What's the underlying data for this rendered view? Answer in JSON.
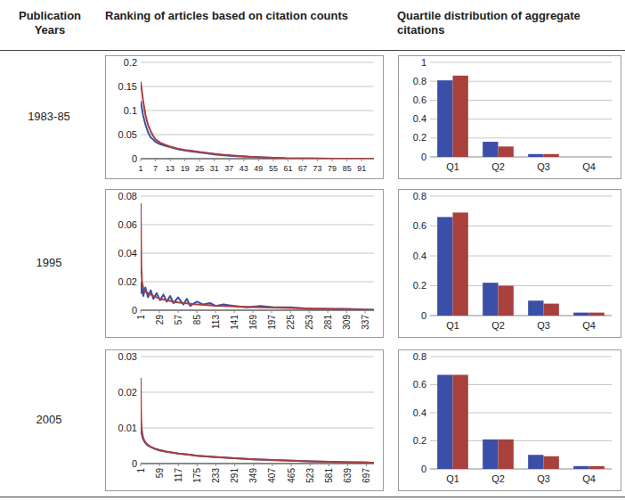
{
  "table": {
    "columns": [
      "Publication Years",
      "Ranking of articles based on citation counts",
      "Quartile distribution of aggregate citations"
    ],
    "row_labels": [
      "1983-85",
      "1995",
      "2005"
    ]
  },
  "chart_data": [
    {
      "type": "line",
      "grid": true,
      "x": [
        1,
        2,
        3,
        4,
        5,
        6,
        7,
        9,
        11,
        13,
        16,
        19,
        22,
        25,
        28,
        31,
        35,
        40,
        45,
        50,
        55,
        60,
        70,
        80,
        90,
        96
      ],
      "xlim": [
        1,
        96
      ],
      "xticks": [
        1,
        7,
        13,
        19,
        25,
        31,
        37,
        43,
        49,
        55,
        61,
        67,
        73,
        79,
        85,
        91
      ],
      "ylim": [
        0,
        0.2
      ],
      "yticks": [
        0,
        0.05,
        0.1,
        0.15,
        0.2
      ],
      "series": [
        {
          "color": "#3a4fa8",
          "values": [
            0.12,
            0.09,
            0.07,
            0.055,
            0.045,
            0.04,
            0.035,
            0.03,
            0.027,
            0.024,
            0.02,
            0.017,
            0.015,
            0.013,
            0.011,
            0.009,
            0.007,
            0.005,
            0.004,
            0.003,
            0.002,
            0.001,
            0.0005,
            0.0002,
            0.0001,
            0
          ]
        },
        {
          "color": "#a8403c",
          "values": [
            0.16,
            0.12,
            0.09,
            0.07,
            0.058,
            0.048,
            0.04,
            0.033,
            0.029,
            0.025,
            0.021,
            0.018,
            0.016,
            0.014,
            0.012,
            0.01,
            0.008,
            0.006,
            0.004,
            0.003,
            0.002,
            0.001,
            0.0005,
            0.0002,
            0.0001,
            0
          ]
        }
      ]
    },
    {
      "type": "bar",
      "grid": true,
      "categories": [
        "Q1",
        "Q2",
        "Q3",
        "Q4"
      ],
      "ylim": [
        0,
        1
      ],
      "yticks": [
        0,
        0.2,
        0.4,
        0.6,
        0.8,
        1
      ],
      "series": [
        {
          "color": "#3a4fa8",
          "values": [
            0.81,
            0.16,
            0.03,
            0
          ]
        },
        {
          "color": "#a8403c",
          "values": [
            0.86,
            0.11,
            0.03,
            0
          ]
        }
      ]
    },
    {
      "type": "line",
      "grid": true,
      "x": [
        1,
        2,
        3,
        5,
        8,
        12,
        16,
        20,
        25,
        30,
        35,
        40,
        45,
        50,
        57,
        65,
        70,
        75,
        85,
        95,
        105,
        113,
        125,
        141,
        160,
        180,
        200,
        225,
        253,
        280,
        309,
        337,
        350
      ],
      "xlim": [
        1,
        350
      ],
      "xticks": [
        1,
        29,
        57,
        85,
        113,
        141,
        169,
        197,
        225,
        253,
        281,
        309,
        337
      ],
      "ylim": [
        0,
        0.08
      ],
      "yticks": [
        0,
        0.02,
        0.04,
        0.06,
        0.08
      ],
      "series": [
        {
          "color": "#3a4fa8",
          "values": [
            0.02,
            0.012,
            0.018,
            0.01,
            0.016,
            0.009,
            0.014,
            0.008,
            0.012,
            0.007,
            0.011,
            0.006,
            0.01,
            0.005,
            0.009,
            0.004,
            0.008,
            0.003,
            0.006,
            0.004,
            0.005,
            0.003,
            0.004,
            0.003,
            0.002,
            0.003,
            0.002,
            0.002,
            0.001,
            0.001,
            0.001,
            0.0005,
            0.0003
          ]
        },
        {
          "color": "#a8403c",
          "values": [
            0.075,
            0.03,
            0.02,
            0.015,
            0.013,
            0.012,
            0.011,
            0.01,
            0.009,
            0.008,
            0.0075,
            0.007,
            0.0065,
            0.006,
            0.0055,
            0.005,
            0.0048,
            0.0045,
            0.004,
            0.0038,
            0.0035,
            0.0032,
            0.003,
            0.0027,
            0.0024,
            0.0021,
            0.0018,
            0.0015,
            0.0012,
            0.0009,
            0.0006,
            0.0003,
            0.0002
          ]
        }
      ]
    },
    {
      "type": "bar",
      "grid": true,
      "categories": [
        "Q1",
        "Q2",
        "Q3",
        "Q4"
      ],
      "ylim": [
        0,
        0.8
      ],
      "yticks": [
        0,
        0.2,
        0.4,
        0.6,
        0.8
      ],
      "series": [
        {
          "color": "#3a4fa8",
          "values": [
            0.66,
            0.22,
            0.1,
            0.02
          ]
        },
        {
          "color": "#a8403c",
          "values": [
            0.69,
            0.2,
            0.08,
            0.02
          ]
        }
      ]
    },
    {
      "type": "line",
      "grid": true,
      "x": [
        1,
        2,
        3,
        5,
        8,
        12,
        20,
        30,
        45,
        59,
        80,
        117,
        150,
        175,
        233,
        291,
        349,
        407,
        465,
        523,
        581,
        639,
        697,
        720
      ],
      "xlim": [
        1,
        720
      ],
      "xticks": [
        1,
        59,
        117,
        175,
        233,
        291,
        349,
        407,
        465,
        523,
        581,
        639,
        697
      ],
      "ylim": [
        0,
        0.03
      ],
      "yticks": [
        0,
        0.01,
        0.02,
        0.03
      ],
      "series": [
        {
          "color": "#3a4fa8",
          "values": [
            0.012,
            0.01,
            0.009,
            0.008,
            0.007,
            0.0062,
            0.0053,
            0.0047,
            0.0041,
            0.0037,
            0.0033,
            0.0028,
            0.0025,
            0.0022,
            0.0018,
            0.0015,
            0.0012,
            0.001,
            0.0008,
            0.0006,
            0.0005,
            0.0004,
            0.0003,
            0.0002
          ]
        },
        {
          "color": "#a8403c",
          "values": [
            0.024,
            0.015,
            0.011,
            0.009,
            0.0075,
            0.0065,
            0.0055,
            0.0048,
            0.0042,
            0.0038,
            0.0034,
            0.0028,
            0.0025,
            0.0022,
            0.0018,
            0.0015,
            0.0012,
            0.001,
            0.0008,
            0.0006,
            0.0005,
            0.0004,
            0.0003,
            0.0002
          ]
        }
      ]
    },
    {
      "type": "bar",
      "grid": true,
      "categories": [
        "Q1",
        "Q2",
        "Q3",
        "Q4"
      ],
      "ylim": [
        0,
        0.8
      ],
      "yticks": [
        0,
        0.2,
        0.4,
        0.6,
        0.8
      ],
      "series": [
        {
          "color": "#3a4fa8",
          "values": [
            0.67,
            0.21,
            0.1,
            0.02
          ]
        },
        {
          "color": "#a8403c",
          "values": [
            0.67,
            0.21,
            0.09,
            0.02
          ]
        }
      ]
    }
  ]
}
